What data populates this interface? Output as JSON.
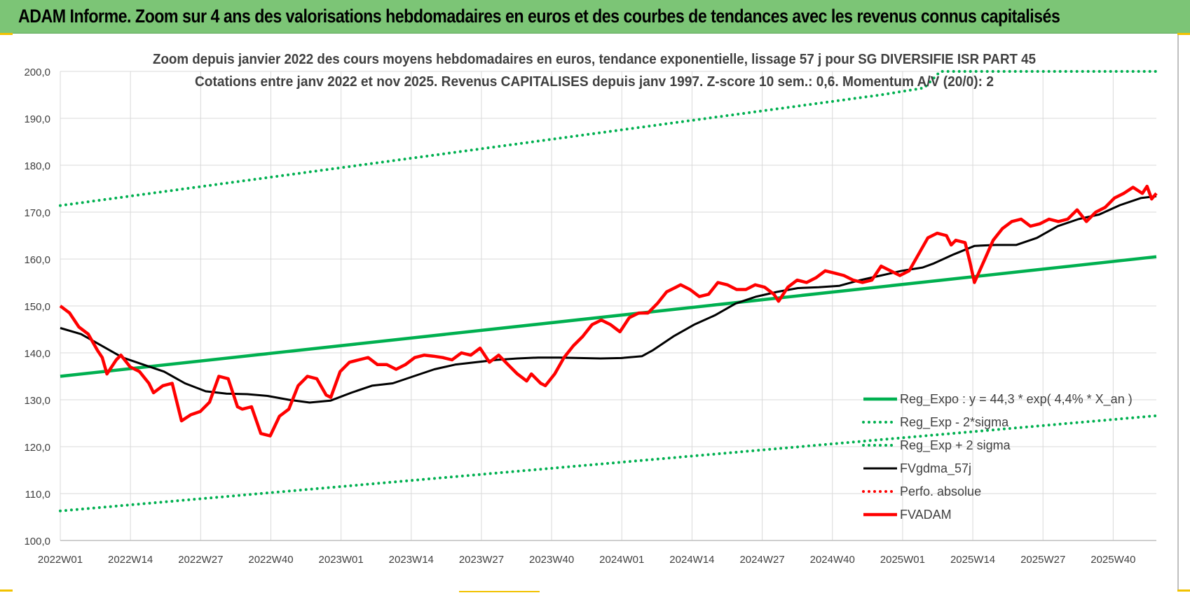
{
  "header": {
    "title": "ADAM Informe. Zoom sur 4 ans des valorisations hebdomadaires en euros et des courbes de tendances avec les revenus connus capitalisés"
  },
  "colors": {
    "header_bg": "#7cc576",
    "reg_expo": "#00b050",
    "fvgdma": "#000000",
    "fvadam": "#ff0000",
    "perfo": "#ff0000",
    "grid": "#d9d9d9",
    "axis_text": "#404040",
    "title_text": "#404040"
  },
  "chart_data": {
    "type": "line",
    "title": "Zoom depuis janvier 2022 des cours moyens hebdomadaires en euros, tendance exponentielle, lissage 57 j pour SG DIVERSIFIE ISR PART 45",
    "subtitle": "Cotations entre janv 2022 et nov 2025. Revenus CAPITALISES depuis janv 1997. Z-score 10 sem.: 0,6. Momentum A/V (20/0): 2",
    "xlabel": "",
    "ylabel": "",
    "ylim": [
      100,
      200
    ],
    "yticks": [
      "100,0",
      "110,0",
      "120,0",
      "130,0",
      "140,0",
      "150,0",
      "160,0",
      "170,0",
      "180,0",
      "190,0",
      "200,0"
    ],
    "x_weeks": [
      0,
      203
    ],
    "xticks": [
      {
        "label": "2022W01",
        "week": 0
      },
      {
        "label": "2022W14",
        "week": 13
      },
      {
        "label": "2022W27",
        "week": 26
      },
      {
        "label": "2022W40",
        "week": 39
      },
      {
        "label": "2023W01",
        "week": 52
      },
      {
        "label": "2023W14",
        "week": 65
      },
      {
        "label": "2023W27",
        "week": 78
      },
      {
        "label": "2023W40",
        "week": 91
      },
      {
        "label": "2024W01",
        "week": 104
      },
      {
        "label": "2024W14",
        "week": 117
      },
      {
        "label": "2024W27",
        "week": 130
      },
      {
        "label": "2024W40",
        "week": 143
      },
      {
        "label": "2025W01",
        "week": 156
      },
      {
        "label": "2025W14",
        "week": 169
      },
      {
        "label": "2025W27",
        "week": 182
      },
      {
        "label": "2025W40",
        "week": 195
      }
    ],
    "grid": true,
    "legend_position": "bottom-right",
    "series": [
      {
        "name": "Reg_Expo : y = 44,3 * exp( 4,4% *  X_an )",
        "style": "solid-thick",
        "color": "#00b050",
        "points": [
          [
            0,
            135.0
          ],
          [
            203,
            160.5
          ]
        ]
      },
      {
        "name": "Reg_Exp - 2*sigma",
        "style": "dotted",
        "color": "#00b050",
        "points": [
          [
            0,
            106.3
          ],
          [
            203,
            126.6
          ]
        ]
      },
      {
        "name": "Reg_Exp + 2 sigma",
        "style": "dotted",
        "color": "#00b050",
        "points": [
          [
            0,
            171.4
          ],
          [
            152,
            195.0
          ],
          [
            160,
            196.5
          ],
          [
            163,
            200.0
          ],
          [
            203,
            200.0
          ]
        ]
      },
      {
        "name": "FVgdma_57j",
        "style": "solid",
        "color": "#000000",
        "points": [
          [
            0,
            145.3
          ],
          [
            4,
            144.0
          ],
          [
            8,
            141.5
          ],
          [
            12,
            139.0
          ],
          [
            16,
            137.5
          ],
          [
            20,
            136.0
          ],
          [
            24,
            133.5
          ],
          [
            28,
            131.8
          ],
          [
            32,
            131.3
          ],
          [
            36,
            131.2
          ],
          [
            40,
            130.8
          ],
          [
            44,
            130.0
          ],
          [
            48,
            129.4
          ],
          [
            52,
            129.8
          ],
          [
            56,
            131.5
          ],
          [
            60,
            133.0
          ],
          [
            64,
            133.5
          ],
          [
            68,
            135.0
          ],
          [
            72,
            136.5
          ],
          [
            76,
            137.5
          ],
          [
            80,
            138.0
          ],
          [
            84,
            138.5
          ],
          [
            88,
            138.8
          ],
          [
            92,
            139.0
          ],
          [
            96,
            139.0
          ],
          [
            100,
            138.9
          ],
          [
            104,
            138.8
          ],
          [
            108,
            138.9
          ],
          [
            112,
            139.3
          ],
          [
            114,
            140.5
          ],
          [
            118,
            143.5
          ],
          [
            122,
            146.0
          ],
          [
            126,
            148.0
          ],
          [
            130,
            150.5
          ],
          [
            134,
            152.0
          ],
          [
            138,
            153.0
          ],
          [
            142,
            153.8
          ],
          [
            146,
            154.0
          ],
          [
            150,
            154.3
          ],
          [
            154,
            155.5
          ],
          [
            158,
            156.5
          ],
          [
            162,
            157.5
          ],
          [
            166,
            158.2
          ],
          [
            168,
            159.0
          ],
          [
            172,
            161.0
          ],
          [
            176,
            162.8
          ],
          [
            180,
            163.0
          ],
          [
            184,
            163.0
          ],
          [
            188,
            164.5
          ],
          [
            192,
            167.0
          ],
          [
            196,
            168.5
          ],
          [
            200,
            169.5
          ],
          [
            204,
            171.5
          ],
          [
            208,
            173.0
          ],
          [
            211,
            173.4
          ]
        ]
      },
      {
        "name": "Perfo. absolue",
        "style": "dotted",
        "color": "#ff0000",
        "points": []
      },
      {
        "name": "FVADAM",
        "style": "solid-thick",
        "color": "#ff0000",
        "points": [
          [
            0,
            150.0
          ],
          [
            2,
            148.5
          ],
          [
            4,
            145.5
          ],
          [
            6,
            144.0
          ],
          [
            8,
            140.5
          ],
          [
            9,
            139.0
          ],
          [
            10,
            135.5
          ],
          [
            12,
            138.5
          ],
          [
            13,
            139.5
          ],
          [
            15,
            137.0
          ],
          [
            17,
            136.0
          ],
          [
            19,
            133.5
          ],
          [
            20,
            131.5
          ],
          [
            22,
            133.0
          ],
          [
            24,
            133.5
          ],
          [
            26,
            125.5
          ],
          [
            28,
            126.8
          ],
          [
            30,
            127.5
          ],
          [
            32,
            129.5
          ],
          [
            34,
            135.0
          ],
          [
            36,
            134.5
          ],
          [
            38,
            128.5
          ],
          [
            39,
            128.0
          ],
          [
            41,
            128.5
          ],
          [
            43,
            122.8
          ],
          [
            45,
            122.3
          ],
          [
            47,
            126.5
          ],
          [
            49,
            128.0
          ],
          [
            51,
            133.0
          ],
          [
            53,
            135.0
          ],
          [
            55,
            134.5
          ],
          [
            57,
            131.0
          ],
          [
            58,
            130.5
          ],
          [
            60,
            136.0
          ],
          [
            62,
            138.0
          ],
          [
            64,
            138.5
          ],
          [
            66,
            139.0
          ],
          [
            68,
            137.5
          ],
          [
            70,
            137.5
          ],
          [
            72,
            136.5
          ],
          [
            74,
            137.5
          ],
          [
            76,
            139.0
          ],
          [
            78,
            139.5
          ],
          [
            80,
            139.3
          ],
          [
            82,
            139.0
          ],
          [
            84,
            138.5
          ],
          [
            86,
            140.0
          ],
          [
            88,
            139.5
          ],
          [
            90,
            141.0
          ],
          [
            92,
            138.0
          ],
          [
            94,
            139.5
          ],
          [
            96,
            137.5
          ],
          [
            98,
            135.5
          ],
          [
            100,
            134.0
          ],
          [
            101,
            135.5
          ],
          [
            103,
            133.5
          ],
          [
            104,
            133.0
          ],
          [
            106,
            135.5
          ],
          [
            108,
            139.0
          ],
          [
            110,
            141.5
          ],
          [
            112,
            143.5
          ],
          [
            114,
            146.0
          ],
          [
            116,
            147.0
          ],
          [
            118,
            146.0
          ],
          [
            120,
            144.5
          ],
          [
            122,
            147.5
          ],
          [
            124,
            148.5
          ],
          [
            126,
            148.5
          ],
          [
            128,
            150.5
          ],
          [
            130,
            153.0
          ],
          [
            132,
            154.0
          ],
          [
            133,
            154.5
          ],
          [
            135,
            153.5
          ],
          [
            137,
            152.0
          ],
          [
            139,
            152.5
          ],
          [
            141,
            155.0
          ],
          [
            143,
            154.5
          ],
          [
            145,
            153.5
          ],
          [
            147,
            153.5
          ],
          [
            149,
            154.5
          ],
          [
            151,
            154.0
          ],
          [
            153,
            152.5
          ],
          [
            154,
            151.0
          ],
          [
            156,
            154.0
          ],
          [
            158,
            155.5
          ],
          [
            160,
            155.0
          ],
          [
            162,
            156.0
          ],
          [
            164,
            157.5
          ],
          [
            166,
            157.0
          ],
          [
            168,
            156.5
          ],
          [
            170,
            155.5
          ],
          [
            172,
            155.0
          ],
          [
            174,
            155.5
          ],
          [
            176,
            158.5
          ],
          [
            178,
            157.5
          ],
          [
            180,
            156.5
          ],
          [
            182,
            157.5
          ],
          [
            184,
            161.0
          ],
          [
            186,
            164.5
          ],
          [
            188,
            165.5
          ],
          [
            190,
            165.0
          ],
          [
            191,
            163.0
          ],
          [
            192,
            164.0
          ],
          [
            194,
            163.5
          ],
          [
            195,
            159.5
          ],
          [
            196,
            155.0
          ],
          [
            198,
            159.5
          ],
          [
            200,
            164.0
          ],
          [
            202,
            166.5
          ],
          [
            204,
            168.0
          ],
          [
            206,
            168.5
          ],
          [
            208,
            167.0
          ],
          [
            210,
            167.5
          ],
          [
            212,
            168.5
          ],
          [
            214,
            168.0
          ],
          [
            216,
            168.5
          ],
          [
            218,
            170.5
          ],
          [
            220,
            168.0
          ],
          [
            222,
            170.0
          ],
          [
            224,
            171.0
          ],
          [
            226,
            173.0
          ],
          [
            228,
            174.0
          ],
          [
            230,
            175.3
          ],
          [
            232,
            174.0
          ],
          [
            233,
            175.5
          ],
          [
            234,
            172.8
          ],
          [
            235,
            174.0
          ]
        ]
      }
    ]
  }
}
